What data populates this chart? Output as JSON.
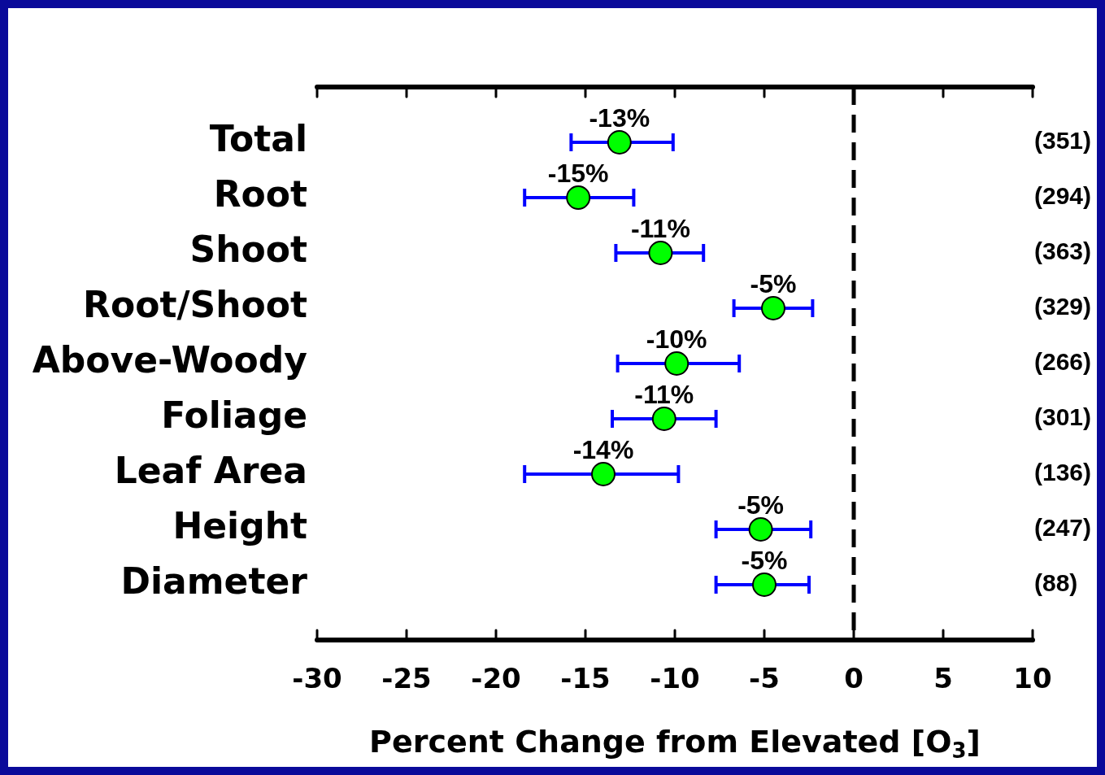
{
  "chart_data": {
    "type": "scatter",
    "orientation": "horizontal",
    "xlabel": "Percent Change from Elevated [O$_{3}$]",
    "categories": [
      "Total",
      "Root",
      "Shoot",
      "Root/Shoot",
      "Above-Woody",
      "Foliage",
      "Leaf Area",
      "Height",
      "Diameter"
    ],
    "values": [
      -13.1,
      -15.4,
      -10.8,
      -4.5,
      -9.9,
      -10.6,
      -14.0,
      -5.2,
      -5.0
    ],
    "errors": [
      [
        -15.8,
        -10.1
      ],
      [
        -18.4,
        -12.3
      ],
      [
        -13.3,
        -8.4
      ],
      [
        -6.7,
        -2.3
      ],
      [
        -13.2,
        -6.4
      ],
      [
        -13.5,
        -7.7
      ],
      [
        -18.4,
        -9.8
      ],
      [
        -7.7,
        -2.4
      ],
      [
        -7.7,
        -2.5
      ]
    ],
    "value_labels": [
      "-13%",
      "-15%",
      "-11%",
      "-5%",
      "-10%",
      "-11%",
      "-14%",
      "-5%",
      "-5%"
    ],
    "color": "#00ff00",
    "marker": "circle",
    "grid": false,
    "legend": false,
    "xlim": [
      -30,
      10
    ],
    "xticks": [
      -30,
      -25,
      -20,
      -15,
      -10,
      -5,
      0,
      5,
      10
    ],
    "ref_lines": [
      {
        "axis": "x",
        "value": 0,
        "color": "#000000",
        "line_style": "dashed"
      }
    ],
    "annotations": [
      "(351)",
      "(294)",
      "(363)",
      "(329)",
      "(266)",
      "(301)",
      "(136)",
      "(247)",
      "(88)"
    ]
  }
}
